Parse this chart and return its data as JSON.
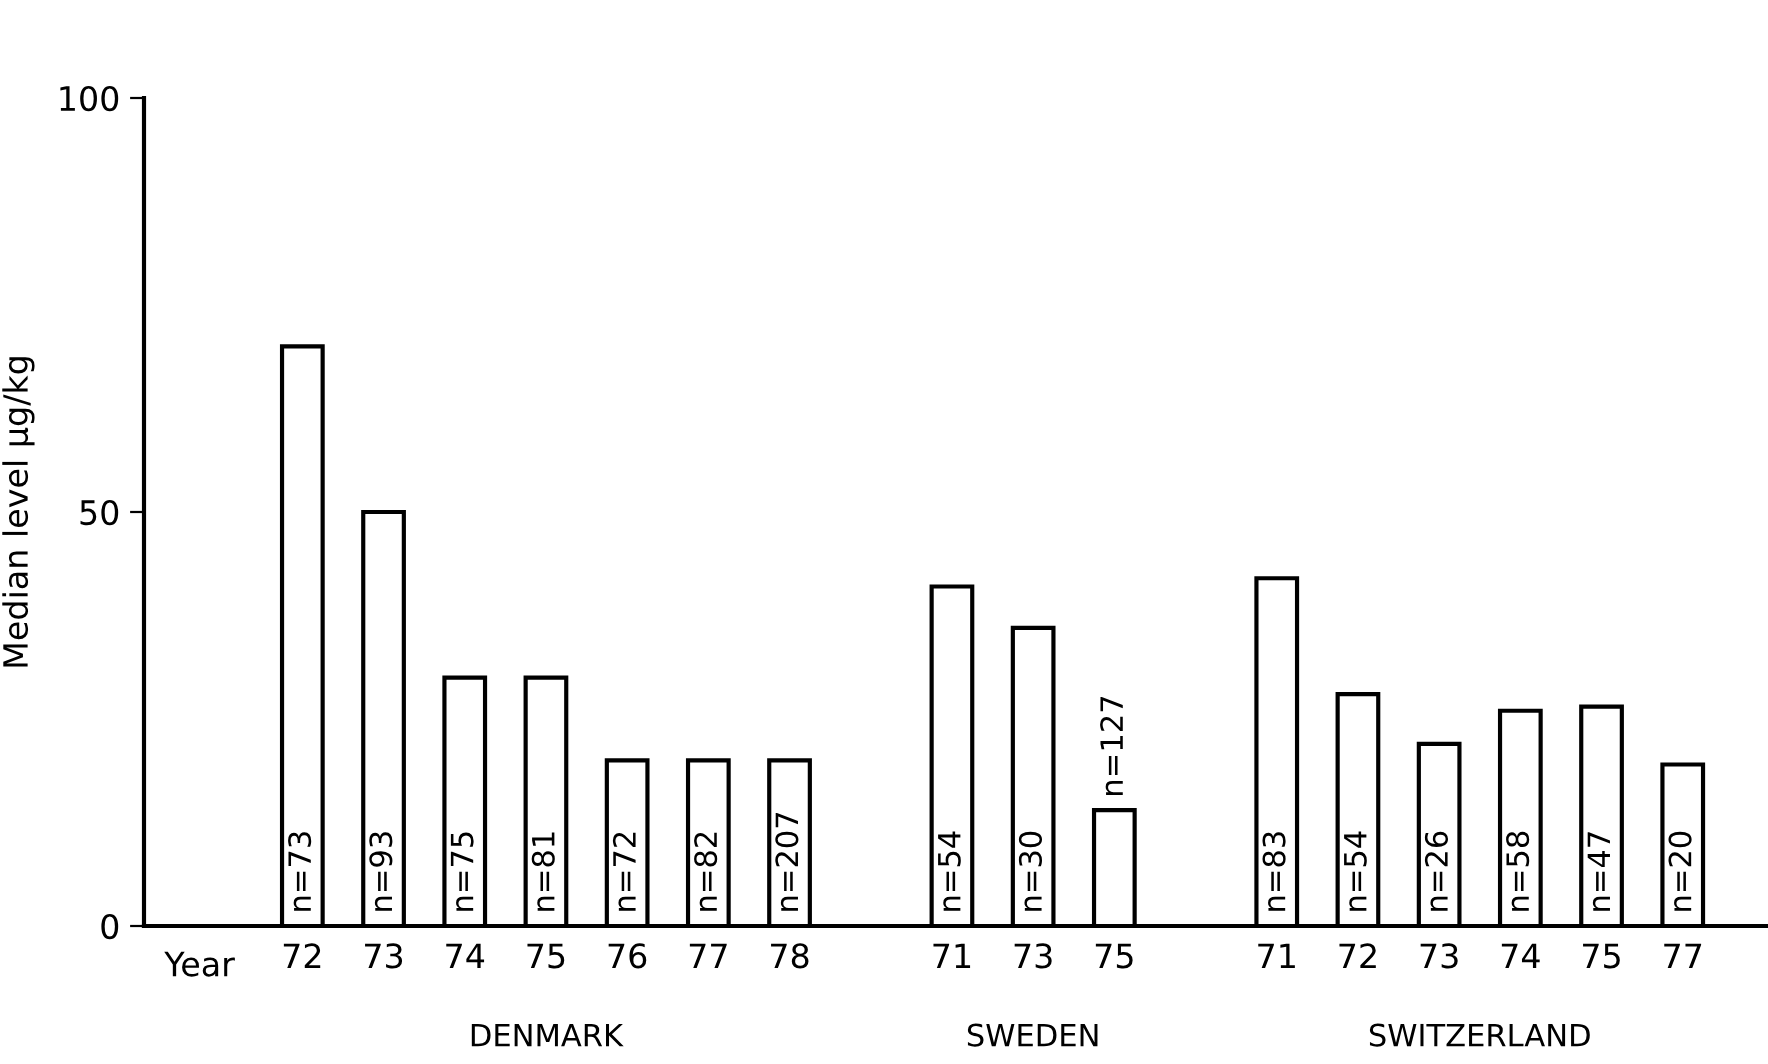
{
  "chart_data": {
    "type": "bar",
    "ylabel": "Median level µg/kg",
    "xlabel": "Year",
    "categories": [
      "72",
      "73",
      "74",
      "75",
      "76",
      "77",
      "78",
      null,
      "71",
      "73",
      "75",
      null,
      "71",
      "72",
      "73",
      "74",
      "75",
      "77"
    ],
    "values": [
      70,
      50,
      30,
      30,
      20,
      20,
      20,
      null,
      41,
      36,
      14,
      null,
      42,
      28,
      22,
      26,
      26.5,
      19.5
    ],
    "color": "#ffffff",
    "ylim": [
      0,
      100
    ],
    "yticks": [
      0,
      50,
      100
    ],
    "grid": false,
    "annotations": [
      "DENMARK",
      "SWEDEN",
      "SWITZERLAND",
      "n=73",
      "n=93",
      "n=75",
      "n=81",
      "n=72",
      "n=82",
      "n=207",
      "n=54",
      "n=30",
      "n=127",
      "n=83",
      "n=54",
      "n=26",
      "n=58",
      "n=47",
      "n=20"
    ]
  }
}
